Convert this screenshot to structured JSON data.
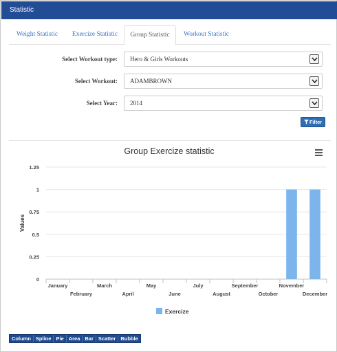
{
  "header": {
    "title": "Statistic"
  },
  "tabs": [
    {
      "label": "Weight Statistic",
      "active": false
    },
    {
      "label": "Exercize Statistic",
      "active": false
    },
    {
      "label": "Group Statistic",
      "active": true
    },
    {
      "label": "Workout Statistic",
      "active": false
    }
  ],
  "form": {
    "workout_type": {
      "label": "Select Workout type:",
      "value": "Hero & Girls Workouts"
    },
    "workout": {
      "label": "Select Workout:",
      "value": "ADAMBROWN"
    },
    "year": {
      "label": "Select Year:",
      "value": "2014"
    },
    "filter_label": "Filter"
  },
  "chart_type_buttons": [
    "Column",
    "Spline",
    "Pie",
    "Area",
    "Bar",
    "Scatter",
    "Bubble"
  ],
  "chart_data": {
    "type": "bar",
    "title": "Group Exercize statistic",
    "xlabel": "",
    "ylabel": "Values",
    "ylim": [
      0,
      1.25
    ],
    "yticks": [
      "0",
      "0.25",
      "0.5",
      "0.75",
      "1",
      "1.25"
    ],
    "categories": [
      "January",
      "February",
      "March",
      "April",
      "May",
      "June",
      "July",
      "August",
      "September",
      "October",
      "November",
      "December"
    ],
    "series": [
      {
        "name": "Exercize",
        "color": "#7cb5ec",
        "values": [
          0,
          0,
          0,
          0,
          0,
          0,
          0,
          0,
          0,
          0,
          1,
          1
        ]
      }
    ],
    "grid": true,
    "legend": "bottom-center"
  }
}
